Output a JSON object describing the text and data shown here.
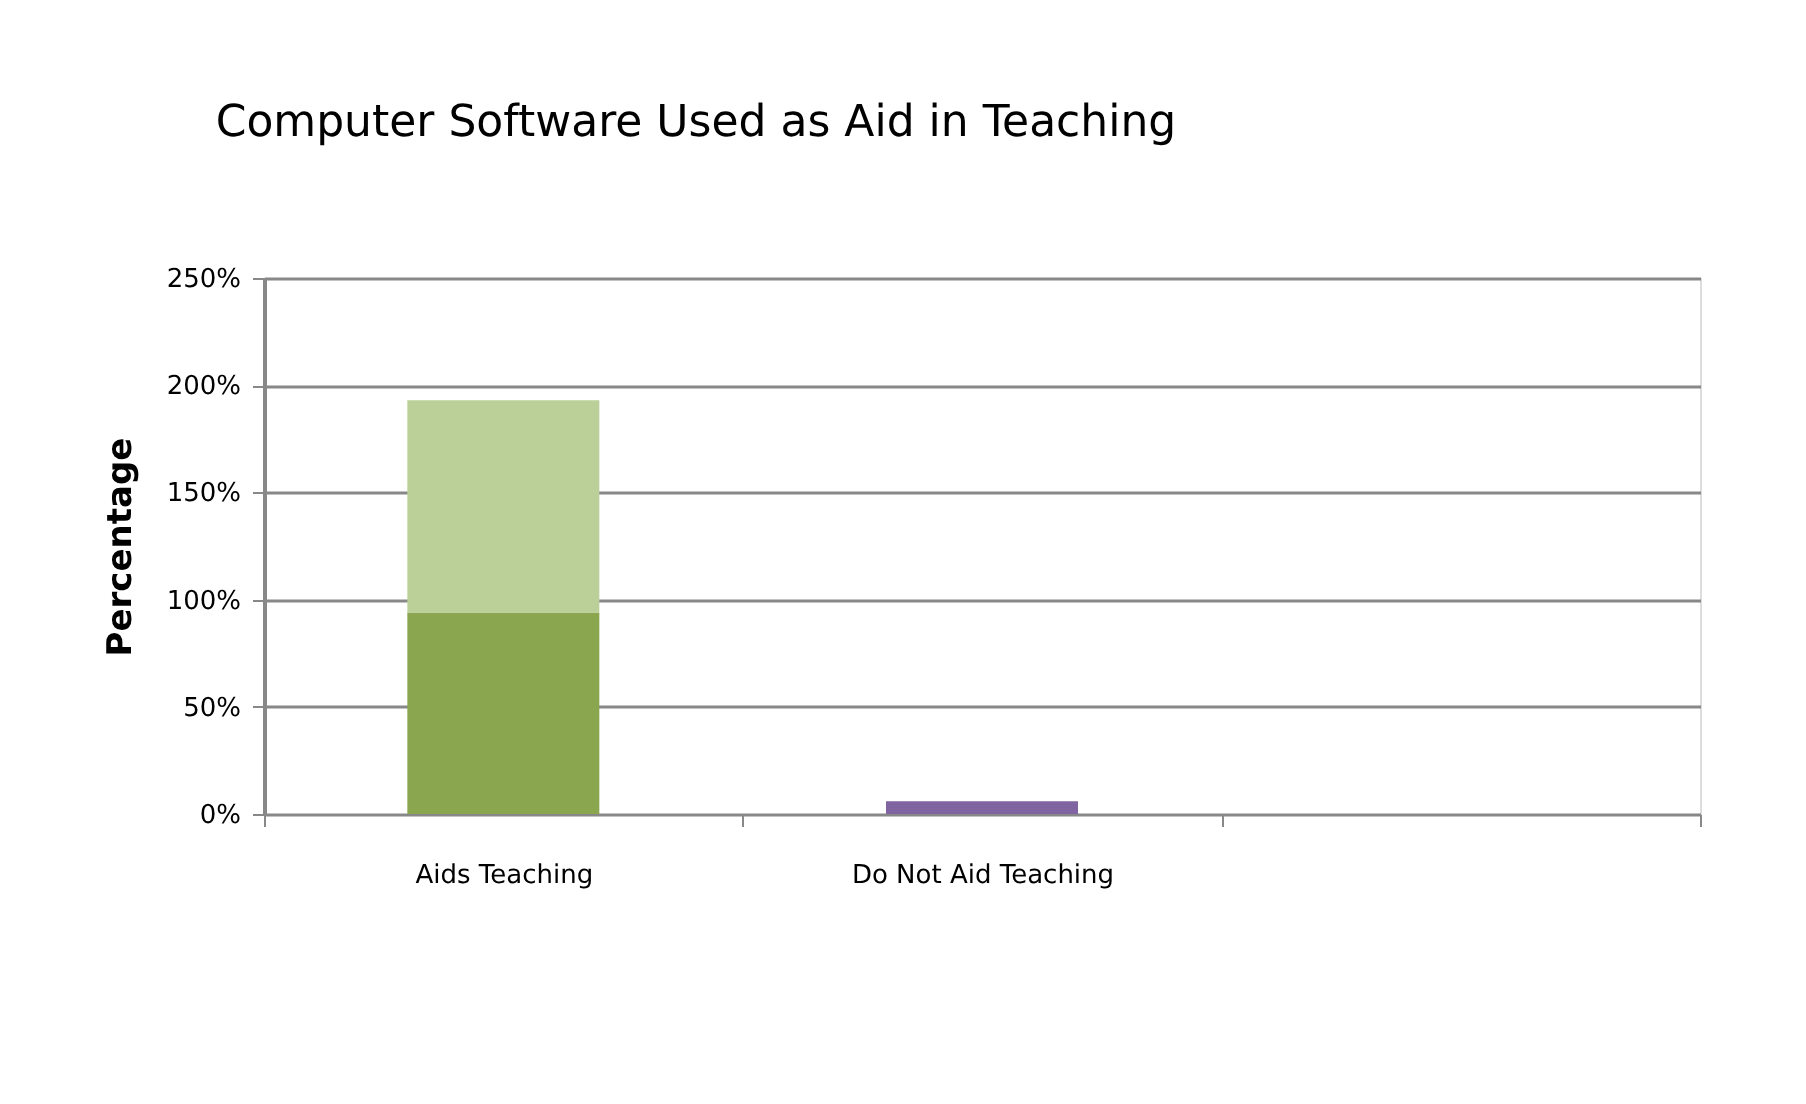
{
  "chart_data": {
    "type": "bar",
    "title": "Computer Software Used as Aid in Teaching",
    "ylabel": "Percentage",
    "categories": [
      "Aids Teaching",
      "Do Not Aid Teaching",
      null
    ],
    "series": [
      {
        "color": "#8aa64f",
        "values": [
          94,
          null,
          null
        ]
      },
      {
        "color": "#bbcf98",
        "values": [
          99,
          null,
          null
        ]
      },
      {
        "color": "#8064a2",
        "values": [
          null,
          6,
          null
        ]
      }
    ],
    "stacked": true,
    "ylim": [
      0,
      250
    ],
    "yticks": [
      {
        "value": 0,
        "label": "0%"
      },
      {
        "value": 50,
        "label": "50%"
      },
      {
        "value": 100,
        "label": "100%"
      },
      {
        "value": 150,
        "label": "150%"
      },
      {
        "value": 200,
        "label": "200%"
      },
      {
        "value": 250,
        "label": "250%"
      }
    ],
    "grid": "y"
  }
}
